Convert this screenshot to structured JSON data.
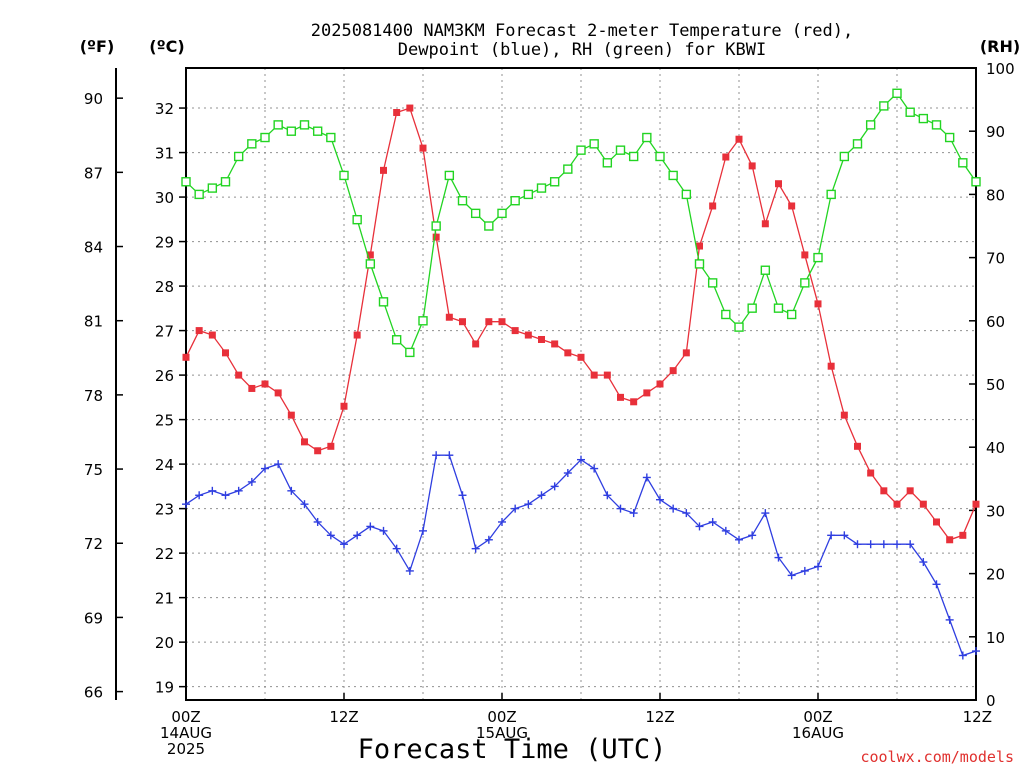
{
  "chart_data": {
    "type": "line",
    "title": [
      "2025081400 NAM3KM Forecast 2-meter Temperature (red),",
      "Dewpoint (blue), RH (green) for KBWI"
    ],
    "xlabel": "Forecast Time (UTC)",
    "left_outer_unit": "(ºF)",
    "left_inner_unit": "(ºC)",
    "right_unit": "(RH)",
    "credit": "coolwx.com/models",
    "x_ticks": [
      {
        "hour": 0,
        "lines": [
          "00Z",
          "14AUG",
          "2025"
        ]
      },
      {
        "hour": 12,
        "lines": [
          "12Z"
        ]
      },
      {
        "hour": 24,
        "lines": [
          "00Z",
          "15AUG"
        ]
      },
      {
        "hour": 36,
        "lines": [
          "12Z"
        ]
      },
      {
        "hour": 48,
        "lines": [
          "00Z",
          "16AUG"
        ]
      },
      {
        "hour": 60,
        "lines": [
          "12Z"
        ]
      }
    ],
    "xlim": [
      0,
      60
    ],
    "celsius_ticks": [
      19,
      20,
      21,
      22,
      23,
      24,
      25,
      26,
      27,
      28,
      29,
      30,
      31,
      32
    ],
    "fahrenheit_ticks": [
      66,
      69,
      72,
      75,
      78,
      81,
      84,
      87,
      90
    ],
    "rh_ticks": [
      0,
      10,
      20,
      30,
      40,
      50,
      60,
      70,
      80,
      90,
      100
    ],
    "ylim_celsius": [
      18.7,
      32.9
    ],
    "ylim_rh": [
      0,
      100
    ],
    "grid": true,
    "series": [
      {
        "name": "Temperature (red)",
        "color": "#e8303a",
        "marker": "filled-square",
        "axis": "celsius",
        "hours": [
          0,
          1,
          2,
          3,
          4,
          5,
          6,
          7,
          8,
          9,
          10,
          11,
          12,
          13,
          14,
          15,
          16,
          17,
          18,
          19,
          20,
          21,
          22,
          23,
          24,
          25,
          26,
          27,
          28,
          29,
          30,
          31,
          32,
          33,
          34,
          35,
          36,
          37,
          38,
          39,
          40,
          41,
          42,
          43,
          44,
          45,
          46,
          47,
          48,
          49,
          50,
          51,
          52,
          53,
          54,
          55,
          56,
          57,
          58,
          59,
          60
        ],
        "values": [
          26.4,
          27.0,
          26.9,
          26.5,
          26.0,
          25.7,
          25.8,
          25.6,
          25.1,
          24.5,
          24.3,
          24.4,
          25.3,
          26.9,
          28.7,
          30.6,
          31.9,
          32.0,
          31.1,
          29.1,
          27.3,
          27.2,
          26.7,
          27.2,
          27.2,
          27.0,
          26.9,
          26.8,
          26.7,
          26.5,
          26.4,
          26.0,
          26.0,
          25.5,
          25.4,
          25.6,
          25.8,
          26.1,
          26.5,
          28.9,
          29.8,
          30.9,
          31.3,
          30.7,
          29.4,
          30.3,
          29.8,
          28.7,
          27.6,
          26.2,
          25.1,
          24.4,
          23.8,
          23.4,
          23.1,
          23.4,
          23.1,
          22.7,
          22.3,
          22.4,
          23.1
        ]
      },
      {
        "name": "Dewpoint (blue)",
        "color": "#2f3ee0",
        "marker": "plus",
        "axis": "celsius",
        "hours": [
          0,
          1,
          2,
          3,
          4,
          5,
          6,
          7,
          8,
          9,
          10,
          11,
          12,
          13,
          14,
          15,
          16,
          17,
          18,
          19,
          20,
          21,
          22,
          23,
          24,
          25,
          26,
          27,
          28,
          29,
          30,
          31,
          32,
          33,
          34,
          35,
          36,
          37,
          38,
          39,
          40,
          41,
          42,
          43,
          44,
          45,
          46,
          47,
          48,
          49,
          50,
          51,
          52,
          53,
          54,
          55,
          56,
          57,
          58,
          59,
          60
        ],
        "values": [
          23.1,
          23.3,
          23.4,
          23.3,
          23.4,
          23.6,
          23.9,
          24.0,
          23.4,
          23.1,
          22.7,
          22.4,
          22.2,
          22.4,
          22.6,
          22.5,
          22.1,
          21.6,
          22.5,
          24.2,
          24.2,
          23.3,
          22.1,
          22.3,
          22.7,
          23.0,
          23.1,
          23.3,
          23.5,
          23.8,
          24.1,
          23.9,
          23.3,
          23.0,
          22.9,
          23.7,
          23.2,
          23.0,
          22.9,
          22.6,
          22.7,
          22.5,
          22.3,
          22.4,
          22.9,
          21.9,
          21.5,
          21.6,
          21.7,
          22.4,
          22.4,
          22.2,
          22.2,
          22.2,
          22.2,
          22.2,
          21.8,
          21.3,
          20.5,
          19.7,
          19.8
        ]
      },
      {
        "name": "RH (green)",
        "color": "#22d422",
        "marker": "open-square",
        "axis": "rh",
        "hours": [
          0,
          1,
          2,
          3,
          4,
          5,
          6,
          7,
          8,
          9,
          10,
          11,
          12,
          13,
          14,
          15,
          16,
          17,
          18,
          19,
          20,
          21,
          22,
          23,
          24,
          25,
          26,
          27,
          28,
          29,
          30,
          31,
          32,
          33,
          34,
          35,
          36,
          37,
          38,
          39,
          40,
          41,
          42,
          43,
          44,
          45,
          46,
          47,
          48,
          49,
          50,
          51,
          52,
          53,
          54,
          55,
          56,
          57,
          58,
          59,
          60
        ],
        "values": [
          82,
          80,
          81,
          82,
          86,
          88,
          89,
          91,
          90,
          91,
          90,
          89,
          83,
          76,
          69,
          63,
          57,
          55,
          60,
          75,
          83,
          79,
          77,
          75,
          77,
          79,
          80,
          81,
          82,
          84,
          87,
          88,
          85,
          87,
          86,
          89,
          86,
          83,
          80,
          69,
          66,
          61,
          59,
          62,
          68,
          62,
          61,
          66,
          70,
          80,
          86,
          88,
          91,
          94,
          96,
          93,
          92,
          91,
          89,
          85,
          82
        ]
      }
    ]
  }
}
